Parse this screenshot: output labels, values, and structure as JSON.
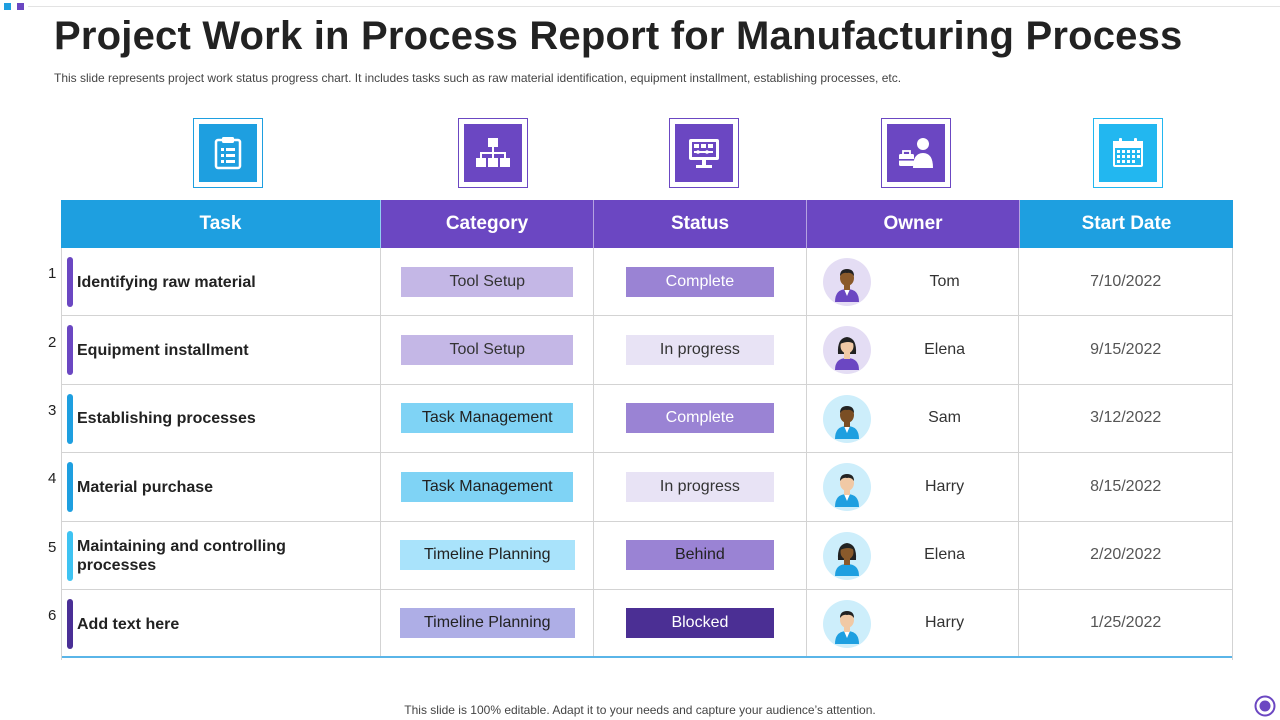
{
  "title": "Project Work in Process Report for Manufacturing Process",
  "subtitle": "This slide represents project work status progress chart. It includes tasks such as raw material identification, equipment installment, establishing processes, etc.",
  "header_icons": [
    "clipboard-icon",
    "hierarchy-icon",
    "monitor-icon",
    "owner-icon",
    "calendar-icon"
  ],
  "table": {
    "headers": {
      "task": "Task",
      "category": "Category",
      "status": "Status",
      "owner": "Owner",
      "start_date": "Start Date"
    },
    "rows": [
      {
        "num": "1",
        "task": "Identifying raw material",
        "category": "Tool Setup",
        "status": "Complete",
        "owner": "Tom",
        "date": "7/10/2022"
      },
      {
        "num": "2",
        "task": "Equipment installment",
        "category": "Tool Setup",
        "status": "In progress",
        "owner": "Elena",
        "date": "9/15/2022"
      },
      {
        "num": "3",
        "task": "Establishing processes",
        "category": "Task Management",
        "status": "Complete",
        "owner": "Sam",
        "date": "3/12/2022"
      },
      {
        "num": "4",
        "task": "Material purchase",
        "category": "Task Management",
        "status": "In progress",
        "owner": "Harry",
        "date": "8/15/2022"
      },
      {
        "num": "5",
        "task": "Maintaining and controlling processes",
        "category": "Timeline Planning",
        "status": "Behind",
        "owner": "Elena",
        "date": "2/20/2022"
      },
      {
        "num": "6",
        "task": "Add text here",
        "category": "Timeline Planning",
        "status": "Blocked",
        "owner": "Harry",
        "date": "1/25/2022"
      }
    ]
  },
  "footer": "This slide is 100% editable. Adapt it to your needs and capture your audience’s attention.",
  "colors": {
    "blue": "#1e9fe0",
    "purple": "#6b47c2",
    "dark_purple": "#4b2f94"
  }
}
